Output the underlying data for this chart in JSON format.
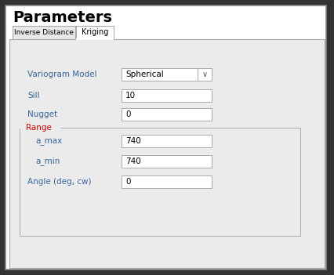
{
  "title": "Parameters",
  "tab1": "Inverse Distance",
  "tab2": "Kriging",
  "field_variogram_label": "Variogram Model",
  "field_variogram_value": "Spherical",
  "field_sill_label": "Sill",
  "field_sill_value": "10",
  "field_nugget_label": "Nugget",
  "field_nugget_value": "0",
  "group_range_label": "Range",
  "field_amax_label": "a_max",
  "field_amax_value": "740",
  "field_amin_label": "a_min",
  "field_amin_value": "740",
  "field_angle_label": "Angle (deg, cw)",
  "field_angle_value": "0",
  "panel_color": "#f0f0f0",
  "content_color": "#ebebeb",
  "border_color": "#aaaaaa",
  "label_color": "#336699",
  "title_color": "#000000",
  "tab_active_color": "#ffffff",
  "tab_inactive_color": "#e0e0e0",
  "outer_bg": "#333333",
  "range_label_color": "#cc0000"
}
